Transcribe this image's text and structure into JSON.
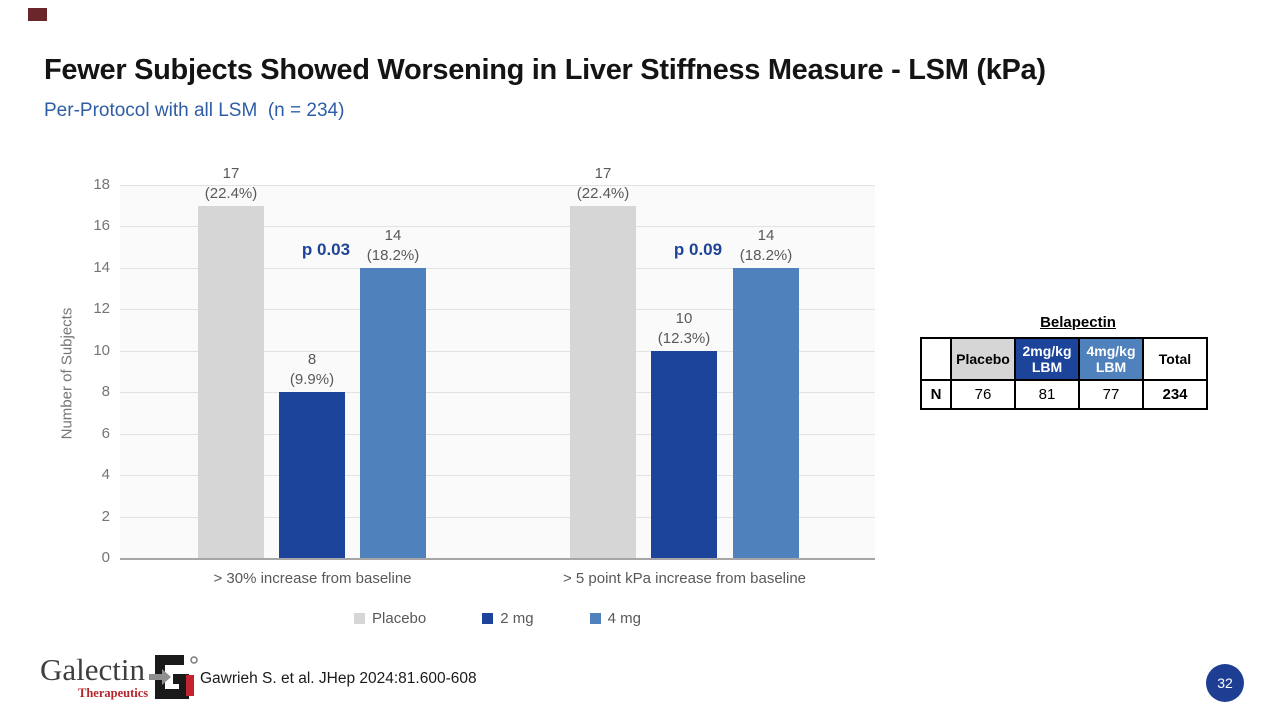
{
  "slide": {
    "title": "Fewer Subjects Showed Worsening in Liver Stiffness Measure - LSM (kPa)",
    "subtitle": "Per-Protocol with all LSM  (n = 234)",
    "citation": "Gawrieh S. et al. JHep 2024:81.600-608",
    "page_number": "32"
  },
  "logo": {
    "name": "Galectin",
    "sub": "Therapeutics"
  },
  "colors": {
    "subtitle_blue": "#2e5da6",
    "p_value_blue": "#1f4497",
    "bar_dark_blue": "#1c449b",
    "bar_mid_blue": "#4f81bd",
    "bar_placebo_gray": "#d6d6d6",
    "page_circle_blue": "#1e3e94",
    "logo_red": "#b3252c",
    "accent_maroon": "#6b262b",
    "axis_text_gray": "#757575",
    "label_gray": "#595959"
  },
  "chart_data": {
    "type": "bar",
    "title": "",
    "xlabel": "",
    "ylabel": "Number of Subjects",
    "ylim": [
      0,
      18
    ],
    "ytick_step": 2,
    "grid": true,
    "legend_position": "bottom",
    "categories": [
      "> 30% increase from baseline",
      "> 5 point kPa increase from baseline"
    ],
    "series": [
      {
        "name": "Placebo",
        "color": "#d6d6d6",
        "values": [
          17,
          17
        ],
        "pct_labels": [
          "(22.4%)",
          "(22.4%)"
        ]
      },
      {
        "name": "2 mg",
        "color": "#1c449b",
        "values": [
          8,
          10
        ],
        "pct_labels": [
          "(9.9%)",
          "(12.3%)"
        ]
      },
      {
        "name": "4 mg",
        "color": "#4f81bd",
        "values": [
          14,
          14
        ],
        "pct_labels": [
          "(18.2%)",
          "(18.2%)"
        ]
      }
    ],
    "p_values": [
      "p 0.03",
      "p 0.09"
    ]
  },
  "table": {
    "title": "Belapectin",
    "columns": [
      "",
      "Placebo",
      "2mg/kg LBM",
      "4mg/kg LBM",
      "Total"
    ],
    "rows": [
      {
        "label": "N",
        "values": [
          "76",
          "81",
          "77",
          "234"
        ]
      }
    ]
  }
}
